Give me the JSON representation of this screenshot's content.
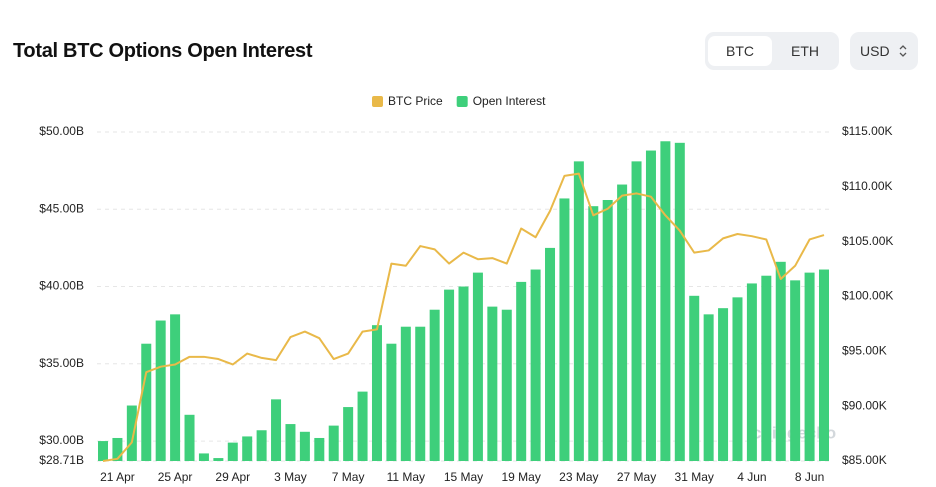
{
  "header": {
    "title": "Total BTC Options Open Interest",
    "tabs": [
      "BTC",
      "ETH"
    ],
    "currency": "USD"
  },
  "chart_data": {
    "type": "bar-line",
    "watermark": "coingecko",
    "categories": [
      null,
      "21 Apr",
      null,
      null,
      null,
      "25 Apr",
      null,
      null,
      null,
      "29 Apr",
      null,
      null,
      null,
      "3 May",
      null,
      null,
      null,
      "7 May",
      null,
      null,
      null,
      "11 May",
      null,
      null,
      null,
      "15 May",
      null,
      null,
      null,
      "19 May",
      null,
      null,
      null,
      "23 May",
      null,
      null,
      null,
      "27 May",
      null,
      null,
      null,
      "31 May",
      null,
      null,
      null,
      "4 Jun",
      null,
      null,
      null,
      "8 Jun",
      null
    ],
    "series": [
      {
        "name": "BTC Price",
        "type": "line",
        "axis": "y2",
        "color": "#e9b949",
        "values": [
          85000,
          85200,
          86700,
          93100,
          93600,
          93800,
          94500,
          94500,
          94300,
          93800,
          94800,
          94400,
          94200,
          96300,
          96800,
          96200,
          94300,
          94800,
          96800,
          97000,
          103000,
          102800,
          104600,
          104300,
          103000,
          104000,
          103400,
          103500,
          103000,
          106200,
          105400,
          107800,
          111000,
          111200,
          107400,
          108000,
          109200,
          109400,
          109100,
          107400,
          106000,
          104000,
          104200,
          105300,
          105700,
          105500,
          105200,
          101600,
          102800,
          105200,
          105600
        ]
      },
      {
        "name": "Open Interest",
        "type": "bar",
        "axis": "y",
        "color": "#3ecf7b",
        "values": [
          30.0,
          30.2,
          32.3,
          36.3,
          37.8,
          38.2,
          31.7,
          29.2,
          28.9,
          29.9,
          30.3,
          30.7,
          32.7,
          31.1,
          30.6,
          30.2,
          31.0,
          32.2,
          33.2,
          37.5,
          36.3,
          37.4,
          37.4,
          38.5,
          39.8,
          40.0,
          40.9,
          38.7,
          38.5,
          40.3,
          41.1,
          42.5,
          45.7,
          48.1,
          45.2,
          45.6,
          46.6,
          48.1,
          48.8,
          49.4,
          49.3,
          39.4,
          38.2,
          38.6,
          39.3,
          40.2,
          40.7,
          41.6,
          40.4,
          40.9,
          41.1
        ]
      }
    ],
    "ylim": [
      28.71,
      50
    ],
    "yticks": [
      {
        "value": 28.71,
        "label": "$28.71B"
      },
      {
        "value": 30,
        "label": "$30.00B"
      },
      {
        "value": 35,
        "label": "$35.00B"
      },
      {
        "value": 40,
        "label": "$40.00B"
      },
      {
        "value": 45,
        "label": "$45.00B"
      },
      {
        "value": 50,
        "label": "$50.00B"
      }
    ],
    "y2lim": [
      85000,
      115000
    ],
    "y2ticks": [
      {
        "value": 85000,
        "label": "$85.00K"
      },
      {
        "value": 90000,
        "label": "$90.00K"
      },
      {
        "value": 95000,
        "label": "$95.00K"
      },
      {
        "value": 100000,
        "label": "$100.00K"
      },
      {
        "value": 105000,
        "label": "$105.00K"
      },
      {
        "value": 110000,
        "label": "$110.00K"
      },
      {
        "value": 115000,
        "label": "$115.00K"
      }
    ],
    "grid": true,
    "legend": "top"
  }
}
